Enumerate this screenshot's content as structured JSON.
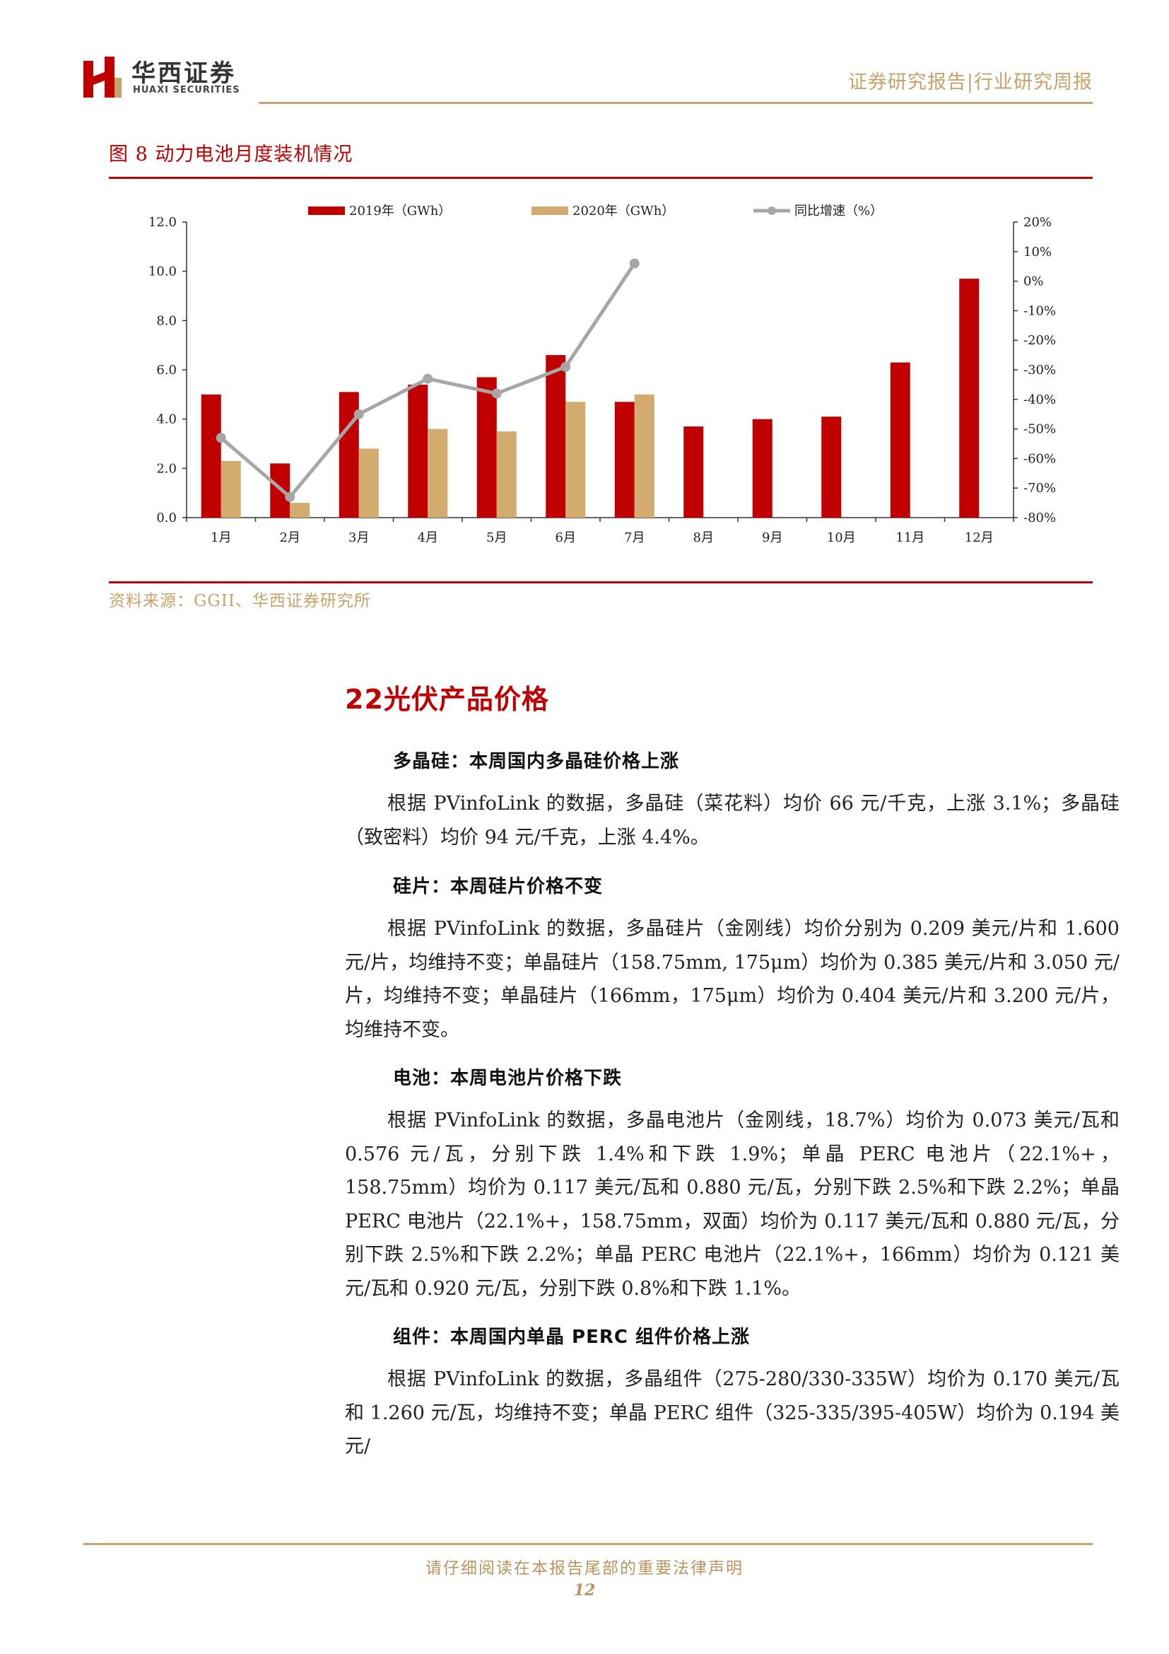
{
  "header": {
    "company_cn": "华西证券",
    "company_en": "HUAXI SECURITIES",
    "report_type": "证券研究报告|行业研究周报"
  },
  "figure": {
    "title": "图 8 动力电池月度装机情况",
    "source": "资料来源：GGII、华西证券研究所"
  },
  "chart_data": {
    "type": "bar",
    "categories": [
      "1月",
      "2月",
      "3月",
      "4月",
      "5月",
      "6月",
      "7月",
      "8月",
      "9月",
      "10月",
      "11月",
      "12月"
    ],
    "series": [
      {
        "name": "2019年（GWh）",
        "type": "bar",
        "axis": "left",
        "color": "#c00000",
        "values": [
          5.0,
          2.2,
          5.1,
          5.4,
          5.7,
          6.6,
          4.7,
          3.7,
          4.0,
          4.1,
          6.3,
          9.7
        ]
      },
      {
        "name": "2020年（GWh）",
        "type": "bar",
        "axis": "left",
        "color": "#d2ab6f",
        "values": [
          2.3,
          0.6,
          2.8,
          3.6,
          3.5,
          4.7,
          5.0,
          null,
          null,
          null,
          null,
          null
        ]
      },
      {
        "name": "同比增速（%）",
        "type": "line",
        "axis": "right",
        "color": "#a6a6a6",
        "values": [
          -53,
          -73,
          -45,
          -33,
          -38,
          -29,
          6,
          null,
          null,
          null,
          null,
          null
        ]
      }
    ],
    "ylim_left": [
      0,
      12
    ],
    "yticks_left": [
      "0.0",
      "2.0",
      "4.0",
      "6.0",
      "8.0",
      "10.0",
      "12.0"
    ],
    "ylim_right": [
      -80,
      20
    ],
    "yticks_right": [
      "-80%",
      "-70%",
      "-60%",
      "-50%",
      "-40%",
      "-30%",
      "-20%",
      "-10%",
      "0%",
      "10%",
      "20%"
    ],
    "legend": "top",
    "grid": false
  },
  "section": {
    "title": "22光伏产品价格",
    "blocks": [
      {
        "heading": "多晶硅：本周国内多晶硅价格上涨",
        "text": "根据 PVinfoLink 的数据，多晶硅（菜花料）均价 66 元/千克，上涨 3.1%；多晶硅（致密料）均价 94 元/千克，上涨 4.4%。"
      },
      {
        "heading": "硅片：本周硅片价格不变",
        "text": "根据 PVinfoLink 的数据，多晶硅片（金刚线）均价分别为 0.209 美元/片和 1.600 元/片，均维持不变；单晶硅片（158.75mm, 175μm）均价为 0.385 美元/片和 3.050 元/片，均维持不变；单晶硅片（166mm，175μm）均价为 0.404 美元/片和 3.200 元/片，均维持不变。"
      },
      {
        "heading": "电池：本周电池片价格下跌",
        "text": "根据 PVinfoLink 的数据，多晶电池片（金刚线，18.7%）均价为 0.073 美元/瓦和 0.576 元/瓦，分别下跌 1.4%和下跌 1.9%；单晶 PERC 电池片（22.1%+，158.75mm）均价为 0.117 美元/瓦和 0.880 元/瓦，分别下跌 2.5%和下跌 2.2%；单晶 PERC 电池片（22.1%+，158.75mm，双面）均价为 0.117 美元/瓦和 0.880 元/瓦，分别下跌 2.5%和下跌 2.2%；单晶 PERC 电池片（22.1%+，166mm）均价为 0.121 美元/瓦和 0.920 元/瓦，分别下跌 0.8%和下跌 1.1%。"
      },
      {
        "heading": "组件：本周国内单晶 PERC 组件价格上涨",
        "text": "根据 PVinfoLink 的数据，多晶组件（275-280/330-335W）均价为 0.170 美元/瓦和 1.260 元/瓦，均维持不变；单晶 PERC 组件（325-335/395-405W）均价为 0.194 美元/"
      }
    ]
  },
  "footer": {
    "note": "请仔细阅读在本报告尾部的重要法律声明",
    "page": "12"
  }
}
